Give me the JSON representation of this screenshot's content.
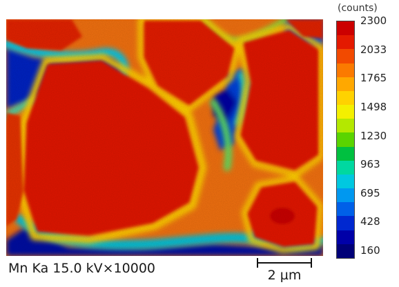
{
  "caption": "Mn Ka 15.0 kV×10000",
  "scale_bar": {
    "label": "2 µm"
  },
  "colorbar": {
    "unit_label": "(counts)",
    "ticks": [
      "2300",
      "2033",
      "1765",
      "1498",
      "1230",
      "963",
      "695",
      "428",
      "160"
    ],
    "colors": [
      "#cc0000",
      "#e41a00",
      "#f24a00",
      "#fb7a00",
      "#ffa800",
      "#ffd200",
      "#f4f000",
      "#b4e800",
      "#5ad400",
      "#00c040",
      "#00d8a0",
      "#00c8e0",
      "#0098f0",
      "#0060e8",
      "#0028d0",
      "#0000a8",
      "#000078"
    ]
  },
  "map": {
    "title": "",
    "background_color": "#f06810",
    "grain_color": "#e41a06",
    "boundary_color": "#00b8e8",
    "void_color": "#0000a0"
  }
}
